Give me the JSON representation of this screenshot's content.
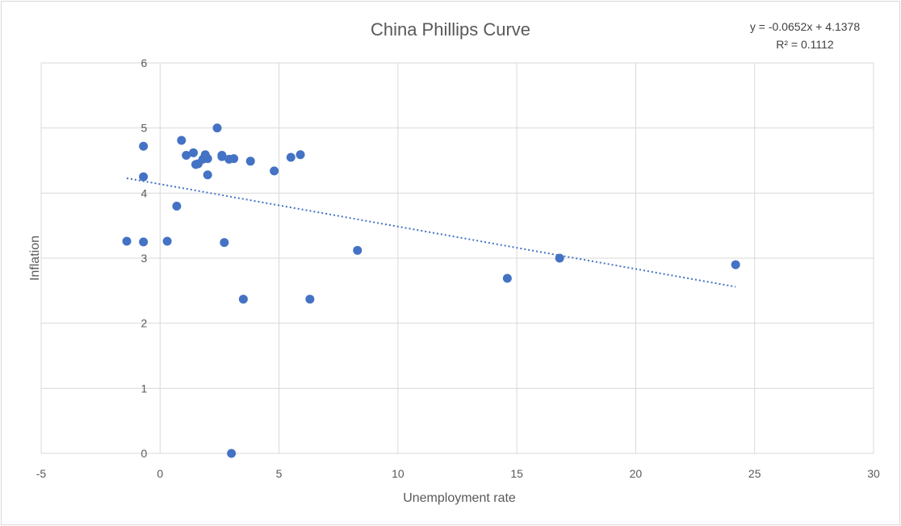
{
  "chart_data": {
    "type": "scatter",
    "title": "China Phillips Curve",
    "xlabel": "Unemployment rate",
    "ylabel": "Inflation",
    "xlim": [
      -5,
      30
    ],
    "ylim": [
      0,
      6
    ],
    "xticks": [
      -5,
      0,
      5,
      10,
      15,
      20,
      25,
      30
    ],
    "yticks": [
      0,
      1,
      2,
      3,
      4,
      5,
      6
    ],
    "grid": true,
    "point_color": "#4472c4",
    "trendline_color": "#4472c4",
    "trendline": {
      "type": "linear",
      "equation": "y = -0.0652x + 4.1378",
      "r_squared": "R² = 0.1112",
      "slope": -0.0652,
      "intercept": 4.1378,
      "x_range": [
        -1.4,
        24.2
      ]
    },
    "series": [
      {
        "points": [
          [
            -1.4,
            3.26
          ],
          [
            -0.7,
            3.25
          ],
          [
            -0.7,
            4.72
          ],
          [
            -0.7,
            4.25
          ],
          [
            0.3,
            3.26
          ],
          [
            0.7,
            3.8
          ],
          [
            0.9,
            4.81
          ],
          [
            1.1,
            4.58
          ],
          [
            1.4,
            4.62
          ],
          [
            1.5,
            4.44
          ],
          [
            1.6,
            4.45
          ],
          [
            1.8,
            4.52
          ],
          [
            1.9,
            4.59
          ],
          [
            2.0,
            4.53
          ],
          [
            2.0,
            4.28
          ],
          [
            2.4,
            5.0
          ],
          [
            2.6,
            4.58
          ],
          [
            2.6,
            4.56
          ],
          [
            2.7,
            3.24
          ],
          [
            2.9,
            4.52
          ],
          [
            3.0,
            0.0
          ],
          [
            3.1,
            4.53
          ],
          [
            3.5,
            2.37
          ],
          [
            3.8,
            4.49
          ],
          [
            4.8,
            4.34
          ],
          [
            5.5,
            4.55
          ],
          [
            5.9,
            4.59
          ],
          [
            6.3,
            2.37
          ],
          [
            8.3,
            3.12
          ],
          [
            14.6,
            2.69
          ],
          [
            16.8,
            3.0
          ],
          [
            24.2,
            2.9
          ]
        ]
      }
    ]
  }
}
